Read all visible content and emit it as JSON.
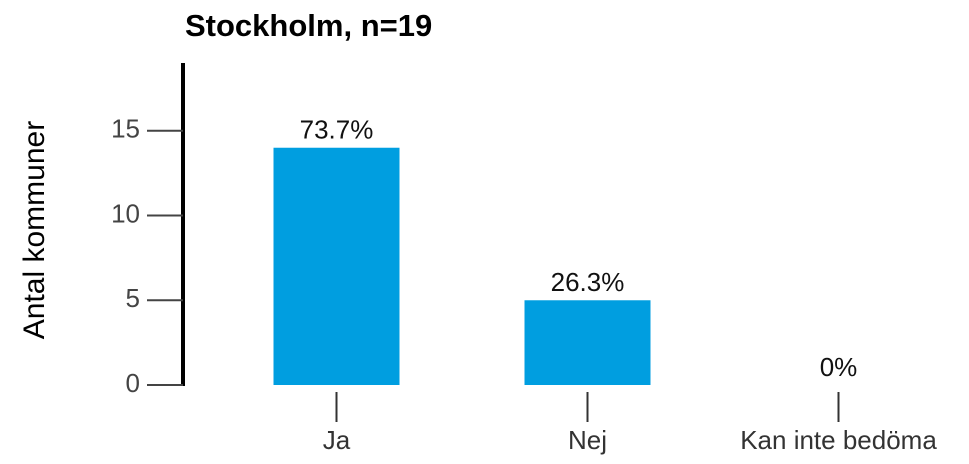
{
  "chart_data": {
    "type": "bar",
    "title": "Stockholm, n=19",
    "y_label": "Antal kommuner",
    "categories": [
      "Ja",
      "Nej",
      "Kan inte bedöma"
    ],
    "values": [
      14,
      5,
      0
    ],
    "value_labels": [
      "73.7%",
      "26.3%",
      "0%"
    ],
    "color": "#009ee0",
    "ylim": [
      0,
      19
    ],
    "yticks": [
      0,
      5,
      10,
      15
    ],
    "grid": false
  }
}
